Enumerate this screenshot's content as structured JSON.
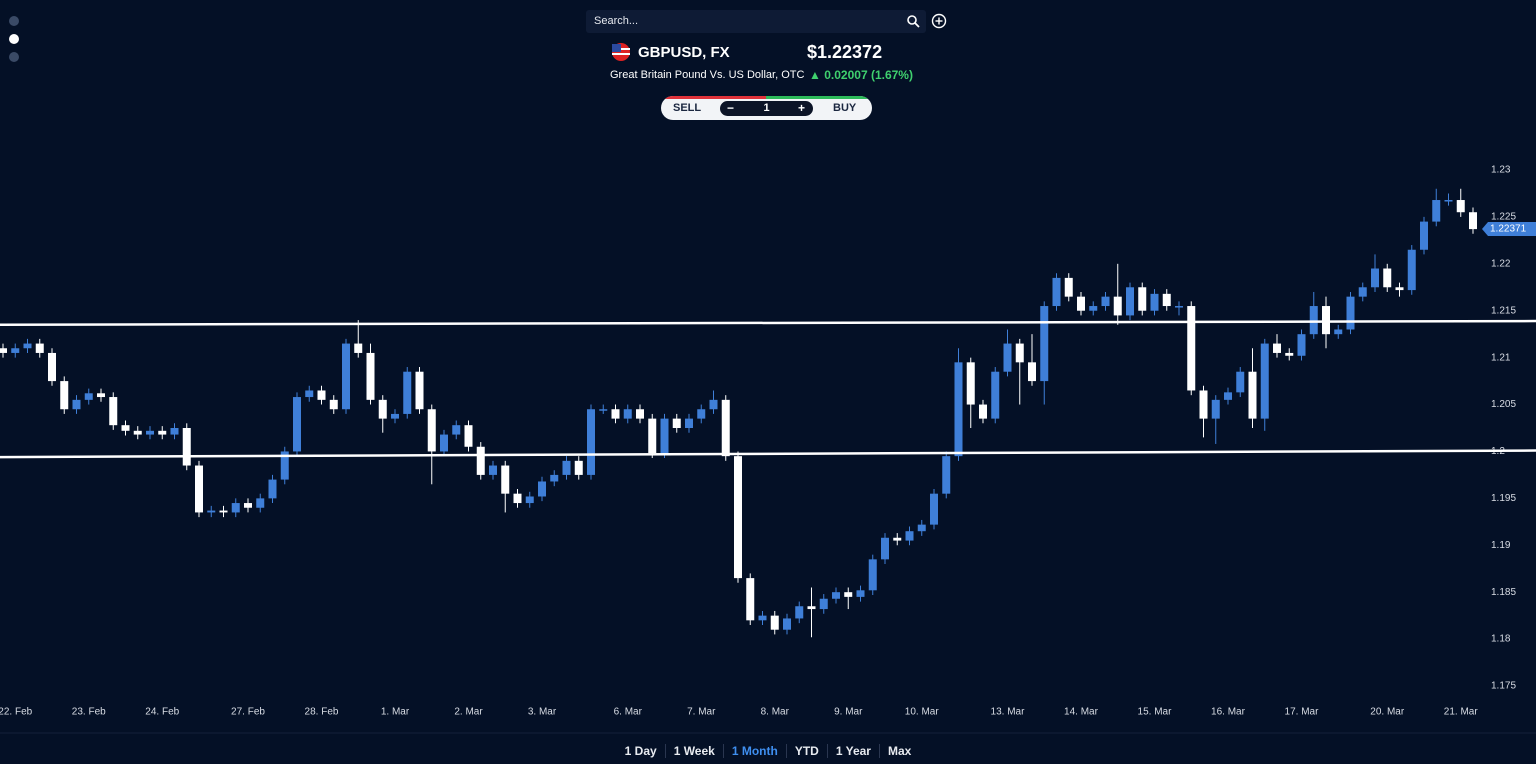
{
  "search": {
    "placeholder": "Search..."
  },
  "quote": {
    "symbol": "GBPUSD, FX",
    "price": "$1.22372",
    "name": "Great Britain Pound Vs. US Dollar, OTC",
    "change": "0.02007 (1.67%)"
  },
  "trade": {
    "sell": "SELL",
    "quantity": 1,
    "buy": "BUY"
  },
  "chart_data": {
    "type": "candlestick",
    "categories": [
      null,
      "22. Feb",
      null,
      null,
      null,
      null,
      null,
      "23. Feb",
      null,
      null,
      null,
      null,
      null,
      "24. Feb",
      null,
      null,
      null,
      null,
      null,
      null,
      "27. Feb",
      null,
      null,
      null,
      null,
      null,
      "28. Feb",
      null,
      null,
      null,
      null,
      null,
      "1. Mar",
      null,
      null,
      null,
      null,
      null,
      "2. Mar",
      null,
      null,
      null,
      null,
      null,
      "3. Mar",
      null,
      null,
      null,
      null,
      null,
      null,
      "6. Mar",
      null,
      null,
      null,
      null,
      null,
      "7. Mar",
      null,
      null,
      null,
      null,
      null,
      "8. Mar",
      null,
      null,
      null,
      null,
      null,
      "9. Mar",
      null,
      null,
      null,
      null,
      null,
      "10. Mar",
      null,
      null,
      null,
      null,
      null,
      null,
      "13. Mar",
      null,
      null,
      null,
      null,
      null,
      "14. Mar",
      null,
      null,
      null,
      null,
      null,
      "15. Mar",
      null,
      null,
      null,
      null,
      null,
      "16. Mar",
      null,
      null,
      null,
      null,
      null,
      "17. Mar",
      null,
      null,
      null,
      null,
      null,
      null,
      "20. Mar",
      null,
      null,
      null,
      null,
      null,
      "21. Mar",
      null
    ],
    "open": [
      1.211,
      1.2105,
      1.211,
      1.2115,
      1.2105,
      1.2075,
      1.2045,
      1.2055,
      1.2062,
      1.2058,
      1.2028,
      1.2022,
      1.2018,
      1.2022,
      1.2018,
      1.2025,
      1.1985,
      1.1935,
      1.1937,
      1.1935,
      1.1945,
      1.194,
      1.195,
      1.197,
      1.2,
      1.2058,
      1.2065,
      1.2055,
      1.2045,
      1.2115,
      1.2105,
      1.2055,
      1.2035,
      1.204,
      1.2085,
      1.2045,
      1.2,
      1.2018,
      1.2028,
      1.2005,
      1.1975,
      1.1985,
      1.1955,
      1.1945,
      1.1952,
      1.1968,
      1.1975,
      1.199,
      1.1975,
      1.2045,
      1.2045,
      1.2035,
      1.2045,
      1.2035,
      1.1998,
      1.2035,
      1.2025,
      1.2035,
      1.2045,
      1.2055,
      1.1995,
      1.1865,
      1.182,
      1.1825,
      1.181,
      1.1822,
      1.1835,
      1.1832,
      1.1843,
      1.185,
      1.1845,
      1.1852,
      1.1885,
      1.1908,
      1.1905,
      1.1915,
      1.1922,
      1.1955,
      1.1995,
      1.2095,
      1.205,
      1.2035,
      1.2085,
      1.2115,
      1.2095,
      1.2075,
      1.2155,
      1.2185,
      1.2165,
      1.215,
      1.2155,
      1.2165,
      1.2145,
      1.2175,
      1.215,
      1.2168,
      1.2155,
      1.2155,
      1.2065,
      1.2035,
      1.2055,
      1.2063,
      1.2085,
      1.2035,
      1.2115,
      1.2105,
      1.2102,
      1.2125,
      1.2155,
      1.2125,
      1.213,
      1.2165,
      1.2175,
      1.2195,
      1.2175,
      1.2172,
      1.2215,
      1.2245,
      1.2268,
      1.2268,
      1.2255
    ],
    "high": [
      1.2115,
      1.2115,
      1.212,
      1.212,
      1.211,
      1.208,
      1.206,
      1.2067,
      1.2067,
      1.2063,
      1.2033,
      1.2027,
      1.2027,
      1.2027,
      1.203,
      1.203,
      1.199,
      1.1942,
      1.1942,
      1.195,
      1.195,
      1.1955,
      1.1975,
      1.2005,
      1.2063,
      1.207,
      1.207,
      1.206,
      1.212,
      1.214,
      1.2115,
      1.206,
      1.2045,
      1.209,
      1.209,
      1.205,
      1.2023,
      1.2033,
      1.2033,
      1.201,
      1.199,
      1.199,
      1.196,
      1.1957,
      1.1973,
      1.198,
      1.1995,
      1.1995,
      1.205,
      1.205,
      1.205,
      1.205,
      1.205,
      1.204,
      1.204,
      1.204,
      1.204,
      1.205,
      1.2065,
      1.206,
      1.2,
      1.187,
      1.183,
      1.183,
      1.1827,
      1.184,
      1.1855,
      1.1848,
      1.1855,
      1.1855,
      1.1857,
      1.189,
      1.1913,
      1.1913,
      1.192,
      1.1927,
      1.196,
      1.2,
      1.211,
      1.21,
      1.2055,
      1.209,
      1.213,
      1.212,
      1.2125,
      1.216,
      1.219,
      1.219,
      1.217,
      1.216,
      1.217,
      1.22,
      1.218,
      1.218,
      1.2173,
      1.2173,
      1.216,
      1.216,
      1.207,
      1.206,
      1.2068,
      1.209,
      1.211,
      1.212,
      1.2125,
      1.211,
      1.213,
      1.217,
      1.2165,
      1.2135,
      1.217,
      1.218,
      1.221,
      1.22,
      1.218,
      1.222,
      1.225,
      1.228,
      1.2275,
      1.228,
      1.226
    ],
    "low": [
      1.21,
      1.21,
      1.2105,
      1.21,
      1.207,
      1.204,
      1.204,
      1.205,
      1.2053,
      1.2023,
      1.2017,
      1.2013,
      1.2013,
      1.2013,
      1.2013,
      1.198,
      1.193,
      1.193,
      1.193,
      1.193,
      1.1935,
      1.1935,
      1.1945,
      1.1965,
      1.1995,
      1.2053,
      1.205,
      1.204,
      1.204,
      1.21,
      1.205,
      1.202,
      1.203,
      1.2035,
      1.204,
      1.1965,
      1.1995,
      1.2013,
      1.2,
      1.197,
      1.197,
      1.1935,
      1.194,
      1.194,
      1.1947,
      1.1963,
      1.197,
      1.197,
      1.197,
      1.204,
      1.203,
      1.203,
      1.203,
      1.1993,
      1.1993,
      1.202,
      1.202,
      1.203,
      1.204,
      1.199,
      1.186,
      1.1815,
      1.1815,
      1.1805,
      1.1805,
      1.1817,
      1.1802,
      1.1827,
      1.1838,
      1.1832,
      1.184,
      1.1847,
      1.188,
      1.19,
      1.19,
      1.191,
      1.1917,
      1.195,
      1.199,
      1.2025,
      1.203,
      1.203,
      1.208,
      1.205,
      1.207,
      1.205,
      1.215,
      1.216,
      1.2145,
      1.2145,
      1.215,
      1.2135,
      1.214,
      1.2145,
      1.2145,
      1.215,
      1.2145,
      1.206,
      1.2015,
      1.2008,
      1.205,
      1.2058,
      1.2025,
      1.2022,
      1.21,
      1.2097,
      1.2097,
      1.212,
      1.211,
      1.212,
      1.2125,
      1.216,
      1.217,
      1.217,
      1.2165,
      1.2167,
      1.221,
      1.224,
      1.2262,
      1.225,
      1.2232
    ],
    "close": [
      1.2105,
      1.211,
      1.2115,
      1.2105,
      1.2075,
      1.2045,
      1.2055,
      1.2062,
      1.2058,
      1.2028,
      1.2022,
      1.2018,
      1.2022,
      1.2018,
      1.2025,
      1.1985,
      1.1935,
      1.1937,
      1.1935,
      1.1945,
      1.194,
      1.195,
      1.197,
      1.2,
      1.2058,
      1.2065,
      1.2055,
      1.2045,
      1.2115,
      1.2105,
      1.2055,
      1.2035,
      1.204,
      1.2085,
      1.2045,
      1.2,
      1.2018,
      1.2028,
      1.2005,
      1.1975,
      1.1985,
      1.1955,
      1.1945,
      1.1952,
      1.1968,
      1.1975,
      1.199,
      1.1975,
      1.2045,
      1.2045,
      1.2035,
      1.2045,
      1.2035,
      1.1998,
      1.2035,
      1.2025,
      1.2035,
      1.2045,
      1.2055,
      1.1995,
      1.1865,
      1.182,
      1.1825,
      1.181,
      1.1822,
      1.1835,
      1.1832,
      1.1843,
      1.185,
      1.1845,
      1.1852,
      1.1885,
      1.1908,
      1.1905,
      1.1915,
      1.1922,
      1.1955,
      1.1995,
      1.2095,
      1.205,
      1.2035,
      1.2085,
      1.2115,
      1.2095,
      1.2075,
      1.2155,
      1.2185,
      1.2165,
      1.215,
      1.2155,
      1.2165,
      1.2145,
      1.2175,
      1.215,
      1.2168,
      1.2155,
      1.2155,
      1.2065,
      1.2035,
      1.2055,
      1.2063,
      1.2085,
      1.2035,
      1.2115,
      1.2105,
      1.2102,
      1.2125,
      1.2155,
      1.2125,
      1.213,
      1.2165,
      1.2175,
      1.2195,
      1.2175,
      1.2172,
      1.2215,
      1.2245,
      1.2268,
      1.2268,
      1.2255,
      1.2237
    ],
    "up_color": "#3f7fd8",
    "down_color": "#ffffff",
    "ylim": [
      1.175,
      1.23
    ],
    "yticks": [
      1.23,
      1.225,
      1.22,
      1.215,
      1.21,
      1.205,
      1.2,
      1.195,
      1.19,
      1.185,
      1.18,
      1.175
    ],
    "last_price": 1.22371,
    "lines": [
      {
        "values": [
          1.2135,
          1.2139
        ]
      },
      {
        "values": [
          1.1994,
          1.2001
        ]
      }
    ]
  },
  "ranges": {
    "options": [
      "1 Day",
      "1 Week",
      "1 Month",
      "YTD",
      "1 Year",
      "Max"
    ],
    "selected": "1 Month"
  }
}
